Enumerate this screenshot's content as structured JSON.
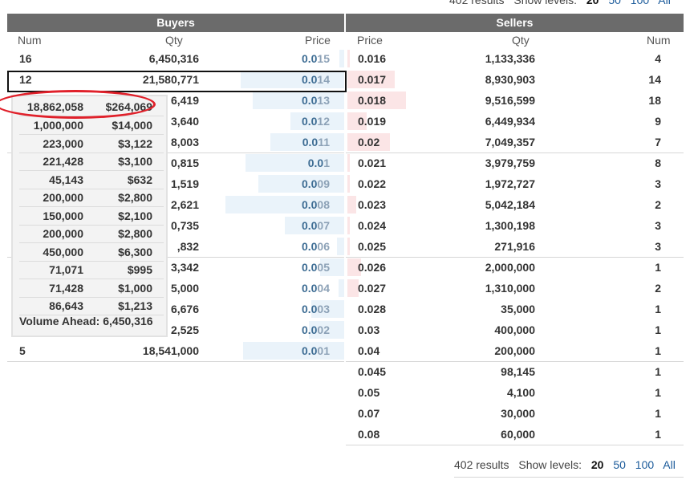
{
  "top_pager": {
    "results": "402 results",
    "show_levels_label": "Show levels:",
    "levels": [
      "20",
      "50",
      "100",
      "All"
    ],
    "active": "20"
  },
  "bottom_pager": {
    "results": "402 results",
    "show_levels_label": "Show levels:",
    "levels": [
      "20",
      "50",
      "100",
      "All"
    ],
    "active": "20"
  },
  "buyers": {
    "title": "Buyers",
    "columns": {
      "num": "Num",
      "qty": "Qty",
      "price": "Price"
    },
    "rows": [
      {
        "num": "16",
        "qty": "6,450,316",
        "price": "0.015",
        "depth": 0.04
      },
      {
        "num": "12",
        "qty": "21,580,771",
        "price": "0.014",
        "depth": 0.87
      },
      {
        "num": "",
        "qty": "6,419",
        "price": "0.013",
        "depth": 0.77
      },
      {
        "num": "",
        "qty": "3,640",
        "price": "0.012",
        "depth": 0.45
      },
      {
        "num": "",
        "qty": "8,003",
        "price": "0.011",
        "depth": 0.62
      },
      {
        "num": "",
        "qty": "0,815",
        "price": "0.01",
        "depth": 0.83
      },
      {
        "num": "",
        "qty": "1,519",
        "price": "0.009",
        "depth": 0.72
      },
      {
        "num": "",
        "qty": "2,621",
        "price": "0.008",
        "depth": 1.0
      },
      {
        "num": "",
        "qty": "0,735",
        "price": "0.007",
        "depth": 0.5
      },
      {
        "num": "",
        "qty": ",832",
        "price": "0.006",
        "depth": 0.06
      },
      {
        "num": "",
        "qty": "3,342",
        "price": "0.005",
        "depth": 0.2
      },
      {
        "num": "",
        "qty": "5,000",
        "price": "0.004",
        "depth": 0.05
      },
      {
        "num": "",
        "qty": "6,676",
        "price": "0.003",
        "depth": 0.28
      },
      {
        "num": "",
        "qty": "2,525",
        "price": "0.002",
        "depth": 0.3
      },
      {
        "num": "5",
        "qty": "18,541,000",
        "price": "0.001",
        "depth": 0.85
      }
    ]
  },
  "sellers": {
    "title": "Sellers",
    "columns": {
      "price": "Price",
      "qty": "Qty",
      "num": "Num"
    },
    "rows": [
      {
        "price": "0.016",
        "qty": "1,133,336",
        "num": "4",
        "depth": 0.02
      },
      {
        "price": "0.017",
        "qty": "8,930,903",
        "num": "14",
        "depth": 0.42
      },
      {
        "price": "0.018",
        "qty": "9,516,599",
        "num": "18",
        "depth": 0.52
      },
      {
        "price": "0.019",
        "qty": "6,449,934",
        "num": "9",
        "depth": 0.17
      },
      {
        "price": "0.02",
        "qty": "7,049,357",
        "num": "7",
        "depth": 0.38
      },
      {
        "price": "0.021",
        "qty": "3,979,759",
        "num": "8",
        "depth": 0.02
      },
      {
        "price": "0.022",
        "qty": "1,972,727",
        "num": "3",
        "depth": 0.02
      },
      {
        "price": "0.023",
        "qty": "5,042,184",
        "num": "2",
        "depth": 0.08
      },
      {
        "price": "0.024",
        "qty": "1,300,198",
        "num": "3",
        "depth": 0.02
      },
      {
        "price": "0.025",
        "qty": "271,916",
        "num": "3",
        "depth": 0.02
      },
      {
        "price": "0.026",
        "qty": "2,000,000",
        "num": "1",
        "depth": 0.12
      },
      {
        "price": "0.027",
        "qty": "1,310,000",
        "num": "2",
        "depth": 0.1
      },
      {
        "price": "0.028",
        "qty": "35,000",
        "num": "1",
        "depth": 0.0
      },
      {
        "price": "0.03",
        "qty": "400,000",
        "num": "1",
        "depth": 0.0
      },
      {
        "price": "0.04",
        "qty": "200,000",
        "num": "1",
        "depth": 0.0
      },
      {
        "price": "0.045",
        "qty": "98,145",
        "num": "1",
        "depth": 0.0
      },
      {
        "price": "0.05",
        "qty": "4,100",
        "num": "1",
        "depth": 0.0
      },
      {
        "price": "0.07",
        "qty": "30,000",
        "num": "1",
        "depth": 0.0
      },
      {
        "price": "0.08",
        "qty": "60,000",
        "num": "1",
        "depth": 0.0
      }
    ]
  },
  "tooltip": {
    "header": {
      "qty": "18,862,058",
      "value": "$264,069"
    },
    "rows": [
      {
        "qty": "1,000,000",
        "value": "$14,000"
      },
      {
        "qty": "223,000",
        "value": "$3,122"
      },
      {
        "qty": "221,428",
        "value": "$3,100"
      },
      {
        "qty": "45,143",
        "value": "$632"
      },
      {
        "qty": "200,000",
        "value": "$2,800"
      },
      {
        "qty": "150,000",
        "value": "$2,100"
      },
      {
        "qty": "200,000",
        "value": "$2,800"
      },
      {
        "qty": "450,000",
        "value": "$6,300"
      },
      {
        "qty": "71,071",
        "value": "$995"
      },
      {
        "qty": "71,428",
        "value": "$1,000"
      },
      {
        "qty": "86,643",
        "value": "$1,213"
      }
    ],
    "footer": "Volume Ahead: 6,450,316"
  },
  "colors": {
    "header_bg": "#6b6b6b",
    "buy_bar": "#eaf3fa",
    "sell_bar": "#fbe5e6",
    "annotation": "#e0202a",
    "link": "#1a5a9a"
  }
}
